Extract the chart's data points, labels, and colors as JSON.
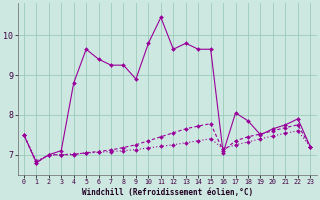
{
  "background_color": "#cce8e0",
  "grid_color": "#99ccbb",
  "line_color": "#990099",
  "x_hours": [
    0,
    1,
    2,
    3,
    4,
    5,
    6,
    7,
    8,
    9,
    10,
    11,
    12,
    13,
    14,
    15,
    16,
    17,
    18,
    19,
    20,
    21,
    22,
    23
  ],
  "curve1": [
    7.5,
    6.8,
    7.0,
    7.1,
    8.8,
    9.65,
    9.4,
    9.25,
    9.25,
    8.9,
    9.8,
    10.45,
    9.65,
    9.8,
    9.65,
    9.65,
    7.05,
    8.05,
    7.85,
    7.5,
    7.65,
    7.75,
    7.9,
    7.2
  ],
  "curve2": [
    7.5,
    6.8,
    7.0,
    7.0,
    7.0,
    7.05,
    7.08,
    7.12,
    7.18,
    7.25,
    7.35,
    7.45,
    7.55,
    7.65,
    7.72,
    7.78,
    7.1,
    7.35,
    7.45,
    7.52,
    7.6,
    7.68,
    7.75,
    7.2
  ],
  "curve3": [
    7.5,
    6.85,
    6.98,
    7.0,
    7.02,
    7.04,
    7.06,
    7.08,
    7.1,
    7.13,
    7.17,
    7.21,
    7.25,
    7.3,
    7.35,
    7.4,
    7.15,
    7.25,
    7.32,
    7.4,
    7.47,
    7.54,
    7.6,
    7.2
  ],
  "xlabel": "Windchill (Refroidissement éolien,°C)",
  "ylim": [
    6.5,
    10.8
  ],
  "xlim": [
    -0.5,
    23.5
  ],
  "yticks": [
    7,
    8,
    9,
    10
  ],
  "yticklabels": [
    "7",
    "8",
    "9",
    "10"
  ],
  "xtick_labels": [
    "0",
    "1",
    "2",
    "3",
    "4",
    "5",
    "6",
    "7",
    "8",
    "9",
    "10",
    "11",
    "12",
    "13",
    "14",
    "15",
    "16",
    "17",
    "18",
    "19",
    "20",
    "21",
    "22",
    "23"
  ]
}
